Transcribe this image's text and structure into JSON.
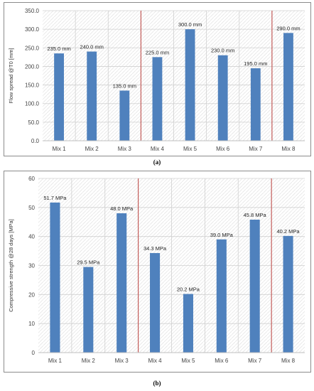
{
  "chart_data": [
    {
      "type": "bar",
      "categories": [
        "Mix 1",
        "Mix 2",
        "Mix 3",
        "Mix 4",
        "Mix 5",
        "Mix 6",
        "Mix 7",
        "Mix 8"
      ],
      "values": [
        235.0,
        240.0,
        135.0,
        225.0,
        300.0,
        230.0,
        195.0,
        290.0
      ],
      "data_labels": [
        "235.0 mm",
        "240.0 mm",
        "135.0 mm",
        "225.0 mm",
        "300.0 mm",
        "230.0 mm",
        "195.0 mm",
        "290.0 mm"
      ],
      "ylabel": "Flow spread @T0 [mm]",
      "ylim": [
        0,
        350
      ],
      "yticks": [
        "0.0",
        "50.0",
        "100.0",
        "150.0",
        "200.0",
        "250.0",
        "300.0",
        "350.0"
      ],
      "separators_after": [
        3,
        7
      ],
      "caption": "(a)",
      "bar_color": "#4f81bd",
      "separator_color": "#c0504d",
      "grid": true
    },
    {
      "type": "bar",
      "categories": [
        "Mix 1",
        "Mix 2",
        "Mix 3",
        "Mix 4",
        "Mix 5",
        "Mix 6",
        "Mix 7",
        "Mix 8"
      ],
      "values": [
        51.7,
        29.5,
        48.0,
        34.3,
        20.2,
        39.0,
        45.8,
        40.2
      ],
      "data_labels": [
        "51.7 MPa",
        "29.5 MPa",
        "48.0 MPa",
        "34.3 MPa",
        "20.2 MPa",
        "39.0 MPa",
        "45.8 MPa",
        "40.2 MPa"
      ],
      "ylabel": "Compressive strength @28 days [MPa]",
      "ylim": [
        0,
        60
      ],
      "yticks": [
        "0",
        "10",
        "20",
        "30",
        "40",
        "50",
        "60"
      ],
      "separators_after": [
        3,
        7
      ],
      "caption": "(b)",
      "bar_color": "#4f81bd",
      "separator_color": "#c0504d",
      "grid": true
    }
  ]
}
